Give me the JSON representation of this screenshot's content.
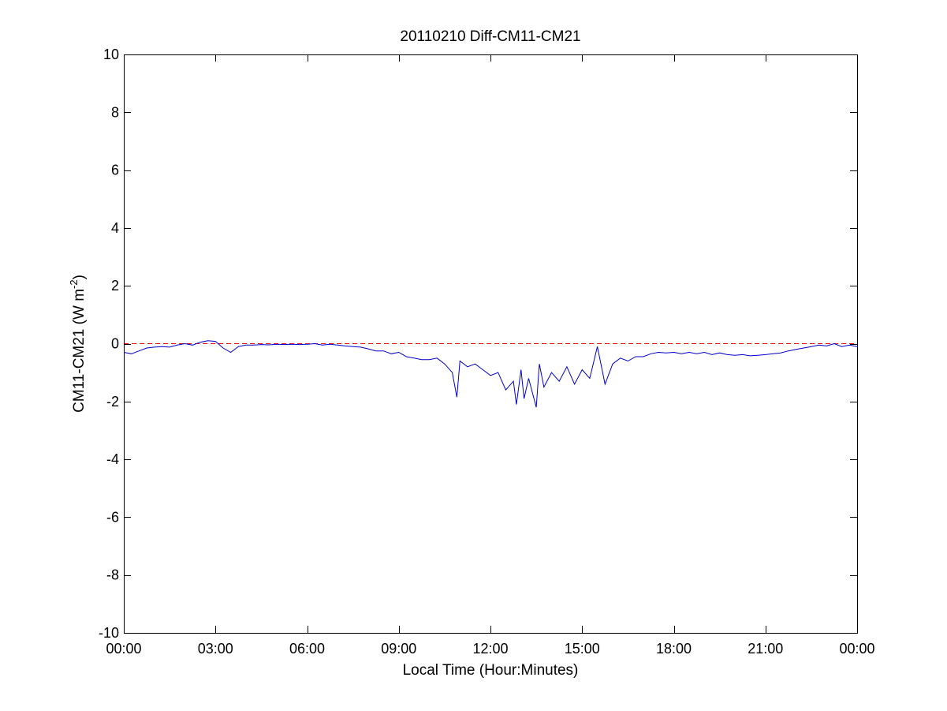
{
  "chart_data": {
    "type": "line",
    "title": "20110210 Diff-CM11-CM21",
    "xlabel": "Local Time (Hour:Minutes)",
    "ylabel": "CM11-CM21 (W m",
    "ylabel_exponent": "-2",
    "ylabel_suffix": ")",
    "xlim": [
      0,
      24
    ],
    "ylim": [
      -10,
      10
    ],
    "x_ticks": [
      {
        "value": 0,
        "label": "00:00"
      },
      {
        "value": 3,
        "label": "03:00"
      },
      {
        "value": 6,
        "label": "06:00"
      },
      {
        "value": 9,
        "label": "09:00"
      },
      {
        "value": 12,
        "label": "12:00"
      },
      {
        "value": 15,
        "label": "15:00"
      },
      {
        "value": 18,
        "label": "18:00"
      },
      {
        "value": 21,
        "label": "21:00"
      },
      {
        "value": 24,
        "label": "00:00"
      }
    ],
    "y_ticks": [
      {
        "value": 10,
        "label": "10"
      },
      {
        "value": 8,
        "label": "8"
      },
      {
        "value": 6,
        "label": "6"
      },
      {
        "value": 4,
        "label": "4"
      },
      {
        "value": 2,
        "label": "2"
      },
      {
        "value": 0,
        "label": "0"
      },
      {
        "value": -2,
        "label": "-2"
      },
      {
        "value": -4,
        "label": "-4"
      },
      {
        "value": -6,
        "label": "-6"
      },
      {
        "value": -8,
        "label": "-8"
      },
      {
        "value": -10,
        "label": "-10"
      }
    ],
    "grid": false,
    "reference_line": {
      "y": 0,
      "color": "#ff0000",
      "style": "dashed"
    },
    "series": [
      {
        "color": "#0000cc",
        "x": [
          0.0,
          0.25,
          0.5,
          0.75,
          1.0,
          1.25,
          1.5,
          1.75,
          2.0,
          2.25,
          2.5,
          2.75,
          3.0,
          3.25,
          3.5,
          3.75,
          4.0,
          4.25,
          4.5,
          4.75,
          5.0,
          5.25,
          5.5,
          5.75,
          6.0,
          6.25,
          6.5,
          6.75,
          7.0,
          7.25,
          7.5,
          7.75,
          8.0,
          8.25,
          8.5,
          8.75,
          9.0,
          9.25,
          9.5,
          9.75,
          10.0,
          10.25,
          10.5,
          10.75,
          10.9,
          11.0,
          11.25,
          11.5,
          11.75,
          12.0,
          12.25,
          12.5,
          12.75,
          12.85,
          13.0,
          13.1,
          13.25,
          13.5,
          13.6,
          13.75,
          14.0,
          14.25,
          14.5,
          14.75,
          15.0,
          15.25,
          15.5,
          15.75,
          16.0,
          16.25,
          16.5,
          16.75,
          17.0,
          17.25,
          17.5,
          17.75,
          18.0,
          18.25,
          18.5,
          18.75,
          19.0,
          19.25,
          19.5,
          19.75,
          20.0,
          20.25,
          20.5,
          20.75,
          21.0,
          21.25,
          21.5,
          21.75,
          22.0,
          22.25,
          22.5,
          22.75,
          23.0,
          23.25,
          23.5,
          23.75,
          24.0
        ],
        "y": [
          -0.3,
          -0.35,
          -0.25,
          -0.15,
          -0.12,
          -0.1,
          -0.12,
          -0.05,
          0.0,
          -0.05,
          0.05,
          0.1,
          0.08,
          -0.15,
          -0.3,
          -0.1,
          -0.05,
          -0.05,
          -0.03,
          -0.04,
          -0.02,
          -0.03,
          -0.02,
          -0.03,
          -0.02,
          0.0,
          -0.05,
          -0.02,
          -0.05,
          -0.08,
          -0.1,
          -0.12,
          -0.18,
          -0.25,
          -0.25,
          -0.35,
          -0.3,
          -0.45,
          -0.5,
          -0.55,
          -0.55,
          -0.5,
          -0.7,
          -1.0,
          -1.85,
          -0.6,
          -0.8,
          -0.7,
          -0.9,
          -1.1,
          -1.0,
          -1.6,
          -1.3,
          -2.1,
          -0.9,
          -1.9,
          -1.2,
          -2.2,
          -0.7,
          -1.5,
          -1.0,
          -1.3,
          -0.8,
          -1.4,
          -0.9,
          -1.2,
          -0.1,
          -1.4,
          -0.7,
          -0.5,
          -0.6,
          -0.45,
          -0.45,
          -0.35,
          -0.3,
          -0.32,
          -0.3,
          -0.35,
          -0.3,
          -0.35,
          -0.3,
          -0.38,
          -0.32,
          -0.38,
          -0.4,
          -0.38,
          -0.42,
          -0.4,
          -0.38,
          -0.35,
          -0.32,
          -0.25,
          -0.2,
          -0.15,
          -0.1,
          -0.05,
          -0.08,
          0.0,
          -0.1,
          -0.05,
          -0.1
        ]
      }
    ]
  }
}
